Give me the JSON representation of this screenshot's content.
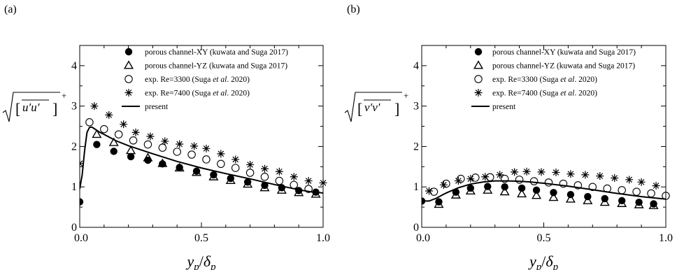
{
  "chart_data": [
    {
      "type": "scatter",
      "panel_label": "(a)",
      "ylabel": "√[ u′u′ ]⁺",
      "xlabel": "y_p/δ_p",
      "xlim": [
        0.0,
        1.0
      ],
      "ylim": [
        0,
        4.5
      ],
      "xticks": [
        "0.0",
        "0.5",
        "1.0"
      ],
      "yticks": [
        "0",
        "1",
        "2",
        "3",
        "4"
      ],
      "grid": false,
      "legend_position": "top-right",
      "series": [
        {
          "name": "porous channel-XY (kuwata and Suga 2017)",
          "marker": "filled-circle",
          "x": [
            0.0,
            0.07,
            0.14,
            0.21,
            0.28,
            0.34,
            0.41,
            0.48,
            0.55,
            0.62,
            0.69,
            0.76,
            0.83,
            0.9,
            0.97
          ],
          "y": [
            0.63,
            2.05,
            1.88,
            1.75,
            1.66,
            1.57,
            1.48,
            1.39,
            1.3,
            1.21,
            1.12,
            1.04,
            0.98,
            0.91,
            0.87
          ]
        },
        {
          "name": "porous channel-YZ (kuwata and Suga 2017)",
          "marker": "open-triangle",
          "x": [
            0.07,
            0.14,
            0.21,
            0.28,
            0.34,
            0.41,
            0.48,
            0.55,
            0.62,
            0.69,
            0.76,
            0.83,
            0.9,
            0.97
          ],
          "y": [
            2.3,
            2.1,
            1.9,
            1.72,
            1.58,
            1.47,
            1.36,
            1.25,
            1.16,
            1.07,
            0.98,
            0.92,
            0.86,
            0.82
          ]
        },
        {
          "name": "exp. Re=3300 (Suga et al. 2020)",
          "marker": "open-circle",
          "x": [
            0.04,
            0.1,
            0.16,
            0.22,
            0.28,
            0.34,
            0.4,
            0.46,
            0.52,
            0.58,
            0.64,
            0.7,
            0.76,
            0.82,
            0.88,
            0.94
          ],
          "y": [
            2.6,
            2.43,
            2.3,
            2.15,
            2.05,
            1.97,
            1.87,
            1.8,
            1.68,
            1.57,
            1.47,
            1.35,
            1.25,
            1.15,
            1.05,
            0.95
          ]
        },
        {
          "name": "exp. Re=7400 (Suga et al. 2020)",
          "marker": "asterisk",
          "x": [
            0.0,
            0.06,
            0.12,
            0.18,
            0.23,
            0.29,
            0.35,
            0.41,
            0.47,
            0.52,
            0.58,
            0.64,
            0.7,
            0.76,
            0.82,
            0.88,
            0.94,
            1.0
          ],
          "y": [
            1.58,
            3.0,
            2.78,
            2.55,
            2.35,
            2.25,
            2.13,
            2.06,
            2.01,
            1.95,
            1.82,
            1.68,
            1.55,
            1.45,
            1.38,
            1.25,
            1.15,
            1.1
          ]
        },
        {
          "name": "present",
          "marker": "line",
          "x": [
            0.0,
            0.01,
            0.02,
            0.03,
            0.04,
            0.05,
            0.06,
            0.08,
            0.1,
            0.15,
            0.2,
            0.3,
            0.4,
            0.5,
            0.6,
            0.7,
            0.8,
            0.9,
            0.95,
            1.0
          ],
          "y": [
            0.95,
            1.3,
            1.9,
            2.35,
            2.47,
            2.48,
            2.44,
            2.36,
            2.3,
            2.14,
            2.02,
            1.82,
            1.63,
            1.47,
            1.33,
            1.2,
            1.06,
            0.93,
            0.88,
            0.85
          ]
        }
      ]
    },
    {
      "type": "scatter",
      "panel_label": "(b)",
      "ylabel": "√[ v′v′ ]⁺",
      "xlabel": "y_p/δ_p",
      "xlim": [
        0.0,
        1.0
      ],
      "ylim": [
        0,
        4.5
      ],
      "xticks": [
        "0.0",
        "0.5",
        "1.0"
      ],
      "yticks": [
        "0",
        "1",
        "2",
        "3",
        "4"
      ],
      "grid": false,
      "legend_position": "top-right",
      "series": [
        {
          "name": "porous channel-XY (kuwata and Suga 2017)",
          "marker": "filled-circle",
          "x": [
            0.0,
            0.07,
            0.14,
            0.2,
            0.27,
            0.34,
            0.41,
            0.47,
            0.54,
            0.61,
            0.68,
            0.75,
            0.82,
            0.89,
            0.95
          ],
          "y": [
            0.65,
            0.63,
            0.87,
            0.97,
            1.01,
            1.0,
            0.97,
            0.92,
            0.86,
            0.81,
            0.76,
            0.71,
            0.66,
            0.62,
            0.58
          ]
        },
        {
          "name": "porous channel-YZ (kuwata and Suga 2017)",
          "marker": "open-triangle",
          "x": [
            0.07,
            0.14,
            0.2,
            0.27,
            0.34,
            0.41,
            0.47,
            0.54,
            0.61,
            0.68,
            0.75,
            0.82,
            0.89,
            0.95
          ],
          "y": [
            0.57,
            0.8,
            0.9,
            0.92,
            0.88,
            0.83,
            0.79,
            0.74,
            0.7,
            0.66,
            0.62,
            0.59,
            0.56,
            0.54
          ]
        },
        {
          "name": "exp. Re=3300 (Suga et al. 2020)",
          "marker": "open-circle",
          "x": [
            0.05,
            0.1,
            0.16,
            0.22,
            0.28,
            0.34,
            0.4,
            0.46,
            0.52,
            0.58,
            0.64,
            0.7,
            0.76,
            0.82,
            0.88,
            0.94,
            1.0
          ],
          "y": [
            0.88,
            1.08,
            1.2,
            1.23,
            1.24,
            1.2,
            1.18,
            1.14,
            1.11,
            1.08,
            1.04,
            1.0,
            0.96,
            0.92,
            0.88,
            0.84,
            0.78
          ]
        },
        {
          "name": "exp. Re=7400 (Suga et al. 2020)",
          "marker": "asterisk",
          "x": [
            0.03,
            0.09,
            0.15,
            0.2,
            0.26,
            0.32,
            0.38,
            0.43,
            0.49,
            0.55,
            0.61,
            0.67,
            0.73,
            0.79,
            0.85,
            0.9,
            0.96
          ],
          "y": [
            0.9,
            1.05,
            1.15,
            1.2,
            1.25,
            1.3,
            1.37,
            1.38,
            1.37,
            1.36,
            1.32,
            1.3,
            1.27,
            1.22,
            1.18,
            1.12,
            1.03
          ]
        },
        {
          "name": "present",
          "marker": "line",
          "x": [
            0.0,
            0.03,
            0.06,
            0.1,
            0.15,
            0.2,
            0.25,
            0.3,
            0.35,
            0.4,
            0.45,
            0.5,
            0.6,
            0.7,
            0.8,
            0.9,
            1.0
          ],
          "y": [
            0.65,
            0.65,
            0.72,
            0.85,
            0.98,
            1.07,
            1.12,
            1.15,
            1.15,
            1.14,
            1.12,
            1.09,
            1.02,
            0.93,
            0.84,
            0.76,
            0.7
          ]
        }
      ]
    }
  ],
  "legend_labels": {
    "xy": "porous channel-XY (kuwata and Suga 2017)",
    "yz": "porous channel-YZ (kuwata and Suga 2017)",
    "exp3300_prefix": "exp. Re=3300 (Suga ",
    "exp7400_prefix": "exp. Re=7400 (Suga ",
    "etal": "et al",
    "ref_suffix": ". 2020)",
    "present": "present"
  },
  "axis_text": {
    "y_a_inner": "u′u′",
    "y_b_inner": "v′v′",
    "y_sup": "+",
    "x_main": "y",
    "x_sub": "p",
    "x_slash": "/",
    "x_delta": "δ"
  }
}
